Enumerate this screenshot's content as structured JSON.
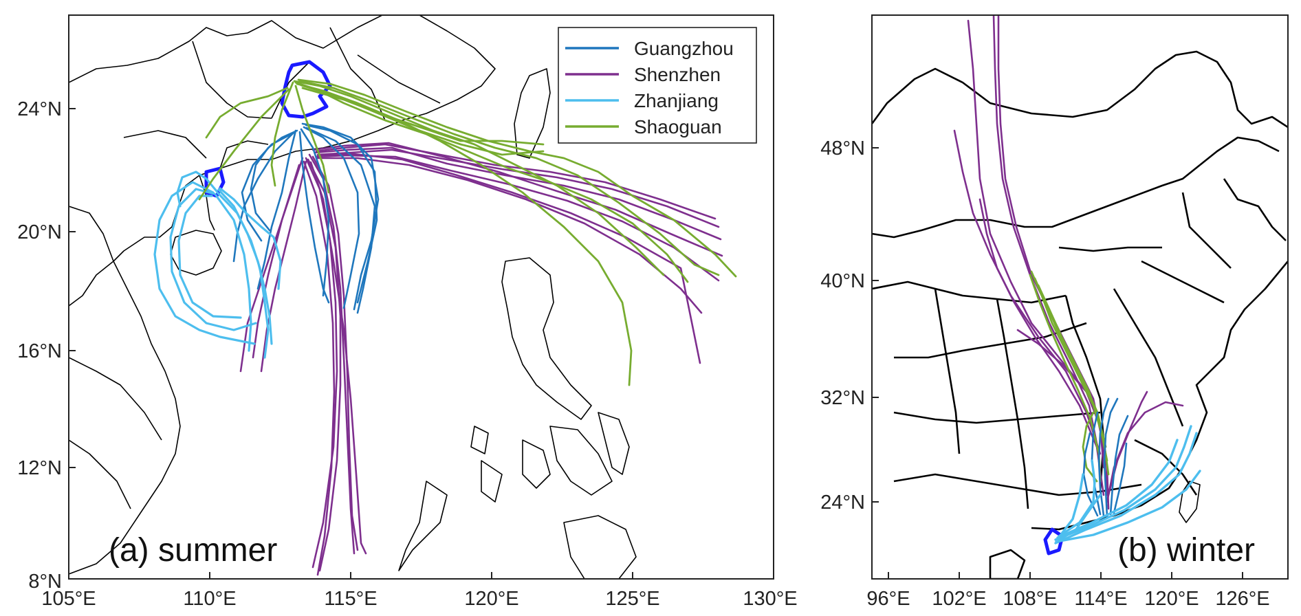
{
  "panels": [
    {
      "label": "(a) summer",
      "x_ticks": [
        "105°E",
        "110°E",
        "115°E",
        "120°E",
        "125°E",
        "130°E"
      ],
      "y_ticks": [
        "8°N",
        "12°N",
        "16°N",
        "20°N",
        "24°N"
      ]
    },
    {
      "label": "(b) winter",
      "x_ticks": [
        "96°E",
        "102°E",
        "108°E",
        "114°E",
        "120°E",
        "126°E"
      ],
      "y_ticks": [
        "24°N",
        "32°N",
        "40°N",
        "48°N"
      ]
    }
  ],
  "legend": [
    {
      "name": "Guangzhou",
      "color": "#1f77bd"
    },
    {
      "name": "Shenzhen",
      "color": "#7e2f8e"
    },
    {
      "name": "Zhanjiang",
      "color": "#4dbeee"
    },
    {
      "name": "Shaoguan",
      "color": "#77ac30"
    }
  ],
  "colors": {
    "guangdong_outline": "#1a1aff",
    "map_lines": "#000000"
  }
}
